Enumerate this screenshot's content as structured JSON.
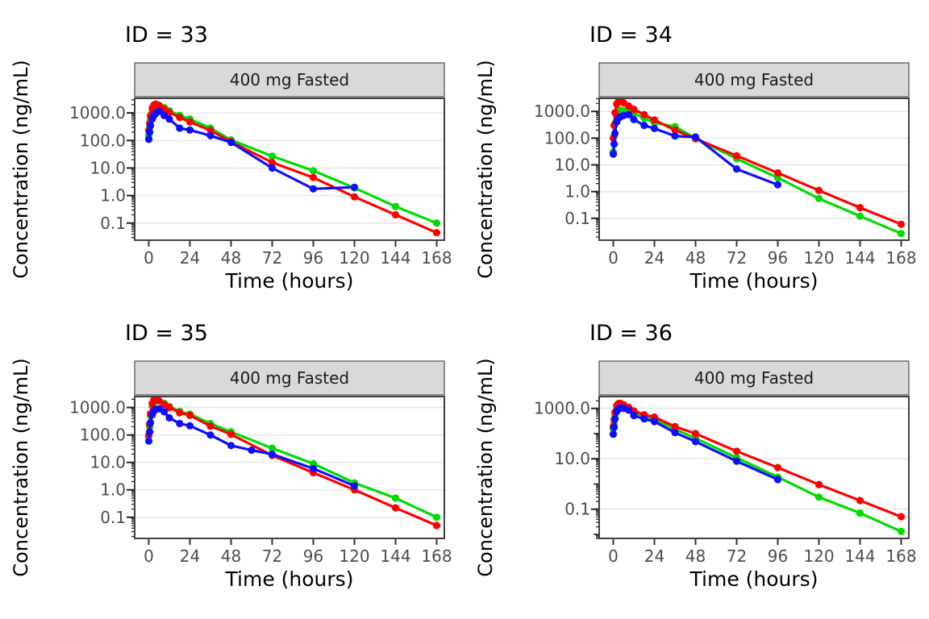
{
  "figure": {
    "x_axis_label": "Time (hours)",
    "y_axis_label": "Concentration (ng/mL)",
    "strip_label": "400 mg Fasted",
    "series_colors": {
      "red": "#FF0000",
      "green": "#00DC00",
      "blue": "#0D0DFF"
    },
    "strip_bg": "#D9D9D9",
    "panel_border": "#404040",
    "gridline_color": "#E8E8E8",
    "tick_label_color": "#4D4D4D"
  },
  "chart_data": [
    {
      "type": "line",
      "id": 33,
      "title": "ID = 33",
      "strip": "400 mg Fasted",
      "xlabel": "Time (hours)",
      "ylabel": "Concentration (ng/mL)",
      "x_ticks": [
        0,
        24,
        48,
        72,
        96,
        120,
        144,
        168
      ],
      "y_ticks": [
        {
          "label": "1000.0",
          "log10": 3
        },
        {
          "label": "100.0",
          "log10": 2
        },
        {
          "label": "10.0",
          "log10": 1
        },
        {
          "label": "1.0",
          "log10": 0
        },
        {
          "label": "0.1",
          "log10": -1
        }
      ],
      "ylog_range": [
        -1.62,
        3.53
      ],
      "xlim": [
        -8.4,
        176.4
      ],
      "series": [
        {
          "name": "green",
          "color": "#00DC00",
          "points": [
            [
              0,
              150
            ],
            [
              0.5,
              300
            ],
            [
              1,
              600
            ],
            [
              2,
              1200
            ],
            [
              3,
              1600
            ],
            [
              4,
              1800
            ],
            [
              6,
              1900
            ],
            [
              9,
              1550
            ],
            [
              12,
              1200
            ],
            [
              18,
              820
            ],
            [
              24,
              600
            ],
            [
              36,
              280
            ],
            [
              48,
              105
            ],
            [
              72,
              27
            ],
            [
              96,
              8
            ],
            [
              120,
              1.9
            ],
            [
              144,
              0.4
            ],
            [
              168,
              0.1
            ]
          ]
        },
        {
          "name": "red",
          "color": "#FF0000",
          "points": [
            [
              0,
              230
            ],
            [
              0.5,
              420
            ],
            [
              1,
              800
            ],
            [
              2,
              1500
            ],
            [
              3,
              1950
            ],
            [
              4,
              2100
            ],
            [
              6,
              1850
            ],
            [
              9,
              1400
            ],
            [
              12,
              1050
            ],
            [
              18,
              680
            ],
            [
              24,
              470
            ],
            [
              36,
              230
            ],
            [
              48,
              90
            ],
            [
              72,
              16
            ],
            [
              96,
              4.5
            ],
            [
              120,
              0.9
            ],
            [
              144,
              0.2
            ],
            [
              168,
              0.045
            ]
          ]
        },
        {
          "name": "blue",
          "color": "#0D0DFF",
          "points": [
            [
              0,
              110
            ],
            [
              0.5,
              200
            ],
            [
              1,
              350
            ],
            [
              2,
              600
            ],
            [
              3,
              800
            ],
            [
              4,
              950
            ],
            [
              6,
              1150
            ],
            [
              9,
              800
            ],
            [
              12,
              600
            ],
            [
              18,
              280
            ],
            [
              24,
              240
            ],
            [
              36,
              150
            ],
            [
              48,
              85
            ],
            [
              72,
              10
            ],
            [
              96,
              1.75
            ],
            [
              120,
              2.0
            ]
          ]
        }
      ]
    },
    {
      "type": "line",
      "id": 34,
      "title": "ID = 34",
      "strip": "400 mg Fasted",
      "xlabel": "Time (hours)",
      "ylabel": "Concentration (ng/mL)",
      "x_ticks": [
        0,
        24,
        48,
        72,
        96,
        120,
        144,
        168
      ],
      "y_ticks": [
        {
          "label": "1000.0",
          "log10": 3
        },
        {
          "label": "100.0",
          "log10": 2
        },
        {
          "label": "10.0",
          "log10": 1
        },
        {
          "label": "1.0",
          "log10": 0
        },
        {
          "label": "0.1",
          "log10": -1
        }
      ],
      "ylog_range": [
        -1.82,
        3.49
      ],
      "xlim": [
        -8.4,
        176.4
      ],
      "series": [
        {
          "name": "green",
          "color": "#00DC00",
          "points": [
            [
              0,
              30
            ],
            [
              0.5,
              120
            ],
            [
              1,
              350
            ],
            [
              2,
              750
            ],
            [
              3,
              1000
            ],
            [
              4,
              1100
            ],
            [
              6,
              1050
            ],
            [
              9,
              950
            ],
            [
              12,
              850
            ],
            [
              18,
              550
            ],
            [
              24,
              380
            ],
            [
              36,
              270
            ],
            [
              48,
              100
            ],
            [
              72,
              17
            ],
            [
              96,
              3.3
            ],
            [
              120,
              0.55
            ],
            [
              144,
              0.12
            ],
            [
              168,
              0.027
            ]
          ]
        },
        {
          "name": "red",
          "color": "#FF0000",
          "points": [
            [
              0,
              100
            ],
            [
              0.5,
              300
            ],
            [
              1,
              900
            ],
            [
              2,
              1900
            ],
            [
              3,
              2400
            ],
            [
              4,
              2450
            ],
            [
              6,
              2100
            ],
            [
              9,
              1600
            ],
            [
              12,
              1200
            ],
            [
              18,
              750
            ],
            [
              24,
              480
            ],
            [
              36,
              200
            ],
            [
              48,
              95
            ],
            [
              72,
              22
            ],
            [
              96,
              5
            ],
            [
              120,
              1.1
            ],
            [
              144,
              0.25
            ],
            [
              168,
              0.06
            ]
          ]
        },
        {
          "name": "blue",
          "color": "#0D0DFF",
          "points": [
            [
              0,
              25
            ],
            [
              0.5,
              60
            ],
            [
              1,
              150
            ],
            [
              2,
              400
            ],
            [
              3,
              550
            ],
            [
              4,
              620
            ],
            [
              6,
              700
            ],
            [
              9,
              760
            ],
            [
              12,
              500
            ],
            [
              18,
              300
            ],
            [
              24,
              230
            ],
            [
              36,
              120
            ],
            [
              48,
              110
            ],
            [
              72,
              7
            ],
            [
              96,
              1.8
            ]
          ]
        }
      ]
    },
    {
      "type": "line",
      "id": 35,
      "title": "ID = 35",
      "strip": "400 mg Fasted",
      "xlabel": "Time (hours)",
      "ylabel": "Concentration (ng/mL)",
      "x_ticks": [
        0,
        24,
        48,
        72,
        96,
        120,
        144,
        168
      ],
      "y_ticks": [
        {
          "label": "1000.0",
          "log10": 3
        },
        {
          "label": "100.0",
          "log10": 2
        },
        {
          "label": "10.0",
          "log10": 1
        },
        {
          "label": "1.0",
          "log10": 0
        },
        {
          "label": "0.1",
          "log10": -1
        }
      ],
      "ylog_range": [
        -1.77,
        3.4
      ],
      "xlim": [
        -8.4,
        176.4
      ],
      "series": [
        {
          "name": "green",
          "color": "#00DC00",
          "points": [
            [
              0,
              90
            ],
            [
              0.5,
              200
            ],
            [
              1,
              500
            ],
            [
              2,
              1100
            ],
            [
              3,
              1500
            ],
            [
              4,
              1700
            ],
            [
              6,
              1750
            ],
            [
              9,
              1400
            ],
            [
              12,
              1100
            ],
            [
              18,
              720
            ],
            [
              24,
              580
            ],
            [
              36,
              260
            ],
            [
              48,
              130
            ],
            [
              72,
              33
            ],
            [
              96,
              9
            ],
            [
              120,
              1.8
            ],
            [
              144,
              0.5
            ],
            [
              168,
              0.1
            ]
          ]
        },
        {
          "name": "red",
          "color": "#FF0000",
          "points": [
            [
              0,
              100
            ],
            [
              0.5,
              250
            ],
            [
              1,
              600
            ],
            [
              2,
              1400
            ],
            [
              3,
              1900
            ],
            [
              4,
              2000
            ],
            [
              6,
              1750
            ],
            [
              9,
              1300
            ],
            [
              12,
              1000
            ],
            [
              18,
              650
            ],
            [
              24,
              520
            ],
            [
              36,
              210
            ],
            [
              48,
              105
            ],
            [
              72,
              18
            ],
            [
              96,
              4.2
            ],
            [
              120,
              1.0
            ],
            [
              144,
              0.22
            ],
            [
              168,
              0.05
            ]
          ]
        },
        {
          "name": "blue",
          "color": "#0D0DFF",
          "points": [
            [
              0,
              60
            ],
            [
              0.5,
              130
            ],
            [
              1,
              280
            ],
            [
              2,
              550
            ],
            [
              3,
              750
            ],
            [
              4,
              850
            ],
            [
              6,
              900
            ],
            [
              9,
              700
            ],
            [
              12,
              420
            ],
            [
              18,
              260
            ],
            [
              24,
              215
            ],
            [
              36,
              100
            ],
            [
              48,
              41
            ],
            [
              60,
              28
            ],
            [
              72,
              20
            ],
            [
              96,
              6
            ],
            [
              120,
              1.4
            ]
          ]
        }
      ]
    },
    {
      "type": "line",
      "id": 36,
      "title": "ID = 36",
      "strip": "400 mg Fasted",
      "xlabel": "Time (hours)",
      "ylabel": "Concentration (ng/mL)",
      "x_ticks": [
        0,
        24,
        48,
        72,
        96,
        120,
        144,
        168
      ],
      "y_ticks": [
        {
          "label": "1000.0",
          "log10": 3
        },
        {
          "label": "10.0",
          "log10": 1
        },
        {
          "label": "0.1",
          "log10": -1
        }
      ],
      "ylog_range": [
        -2.16,
        3.47
      ],
      "xlim": [
        -8.4,
        176.4
      ],
      "series": [
        {
          "name": "green",
          "color": "#00DC00",
          "points": [
            [
              0,
              150
            ],
            [
              0.5,
              250
            ],
            [
              1,
              500
            ],
            [
              2,
              950
            ],
            [
              3,
              1150
            ],
            [
              4,
              1200
            ],
            [
              6,
              1150
            ],
            [
              9,
              950
            ],
            [
              12,
              700
            ],
            [
              18,
              480
            ],
            [
              24,
              380
            ],
            [
              36,
              150
            ],
            [
              48,
              65
            ],
            [
              72,
              11
            ],
            [
              96,
              1.9
            ],
            [
              120,
              0.3
            ],
            [
              144,
              0.07
            ],
            [
              168,
              0.013
            ]
          ]
        },
        {
          "name": "red",
          "color": "#FF0000",
          "points": [
            [
              0,
              190
            ],
            [
              0.5,
              350
            ],
            [
              1,
              700
            ],
            [
              2,
              1300
            ],
            [
              3,
              1550
            ],
            [
              4,
              1600
            ],
            [
              6,
              1400
            ],
            [
              9,
              1100
            ],
            [
              12,
              800
            ],
            [
              18,
              560
            ],
            [
              24,
              450
            ],
            [
              36,
              190
            ],
            [
              48,
              100
            ],
            [
              72,
              20
            ],
            [
              96,
              4.5
            ],
            [
              120,
              0.95
            ],
            [
              144,
              0.22
            ],
            [
              168,
              0.05
            ]
          ]
        },
        {
          "name": "blue",
          "color": "#0D0DFF",
          "points": [
            [
              0,
              95
            ],
            [
              0.5,
              180
            ],
            [
              1,
              380
            ],
            [
              2,
              750
            ],
            [
              3,
              950
            ],
            [
              4,
              1050
            ],
            [
              6,
              1000
            ],
            [
              9,
              850
            ],
            [
              12,
              520
            ],
            [
              18,
              380
            ],
            [
              24,
              300
            ],
            [
              36,
              110
            ],
            [
              48,
              48
            ],
            [
              72,
              8
            ],
            [
              96,
              1.5
            ]
          ]
        }
      ]
    }
  ]
}
